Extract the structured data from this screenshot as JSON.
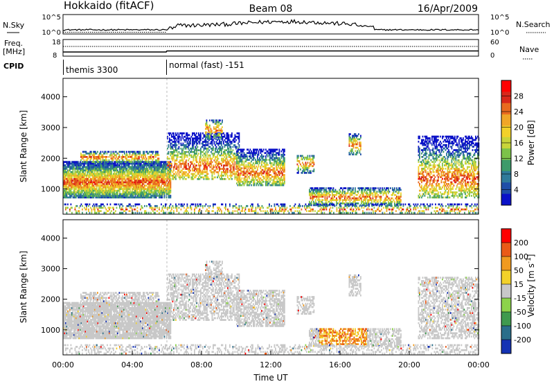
{
  "header": {
    "title": "Hokkaido (fitACF)",
    "beam": "Beam 08",
    "date": "16/Apr/2009"
  },
  "aux": {
    "nsky_label": "N.Sky",
    "nsky_ticks": [
      "10^5",
      "10^0"
    ],
    "nsearch_label": "N.Search",
    "nsearch_ticks": [
      "10^5",
      "10^0"
    ],
    "freq_label": "Freq.",
    "freq_unit": "[MHz]",
    "freq_ticks": [
      "18",
      "8"
    ],
    "nave_label": "Nave",
    "nave_ticks": [
      "60",
      "0"
    ],
    "cpid_label": "CPID",
    "cpid_segments": [
      {
        "label": "themis 3300",
        "start_hour": 0
      },
      {
        "label": "normal (fast) -151",
        "start_hour": 6
      }
    ]
  },
  "chart_data": [
    {
      "type": "heatmap",
      "name": "power",
      "ylabel": "Slant Range [km]",
      "yticks": [
        1000,
        2000,
        3000,
        4000
      ],
      "ylim": [
        180,
        4600
      ],
      "colorbar_label": "Power [dB]",
      "colorbar_ticks": [
        "28",
        "24",
        "20",
        "16",
        "12",
        "8",
        "4"
      ],
      "colorbar_colors": [
        "#0b12c8",
        "#1f4ea8",
        "#2f7a9a",
        "#3d9a6a",
        "#7cc24a",
        "#c8d43a",
        "#f2d12a",
        "#f0a628",
        "#e96a1f",
        "#d8281a",
        "#ff0000"
      ]
    },
    {
      "type": "heatmap",
      "name": "velocity",
      "ylabel": "Slant Range [km]",
      "yticks": [
        1000,
        2000,
        3000,
        4000
      ],
      "ylim": [
        180,
        4600
      ],
      "xlabel": "Time UT",
      "xticks": [
        "00:00",
        "04:00",
        "08:00",
        "12:00",
        "16:00",
        "20:00",
        "00:00"
      ],
      "xlim_hours": [
        0,
        24
      ],
      "colorbar_label": "Velocity [m s^-1]",
      "colorbar_ticks": [
        "200",
        "100",
        "50",
        "15",
        "-15",
        "-50",
        "-100",
        "-200"
      ],
      "colorbar_colors": [
        "#1432b4",
        "#2a6e8a",
        "#3f9a4e",
        "#8cd34a",
        "#c8c8c8",
        "#f2d12a",
        "#f09a20",
        "#ea5a18",
        "#ff0000"
      ]
    }
  ],
  "scatter": {
    "ground": "#c8c8c8",
    "cpid_change_hour": 6
  }
}
